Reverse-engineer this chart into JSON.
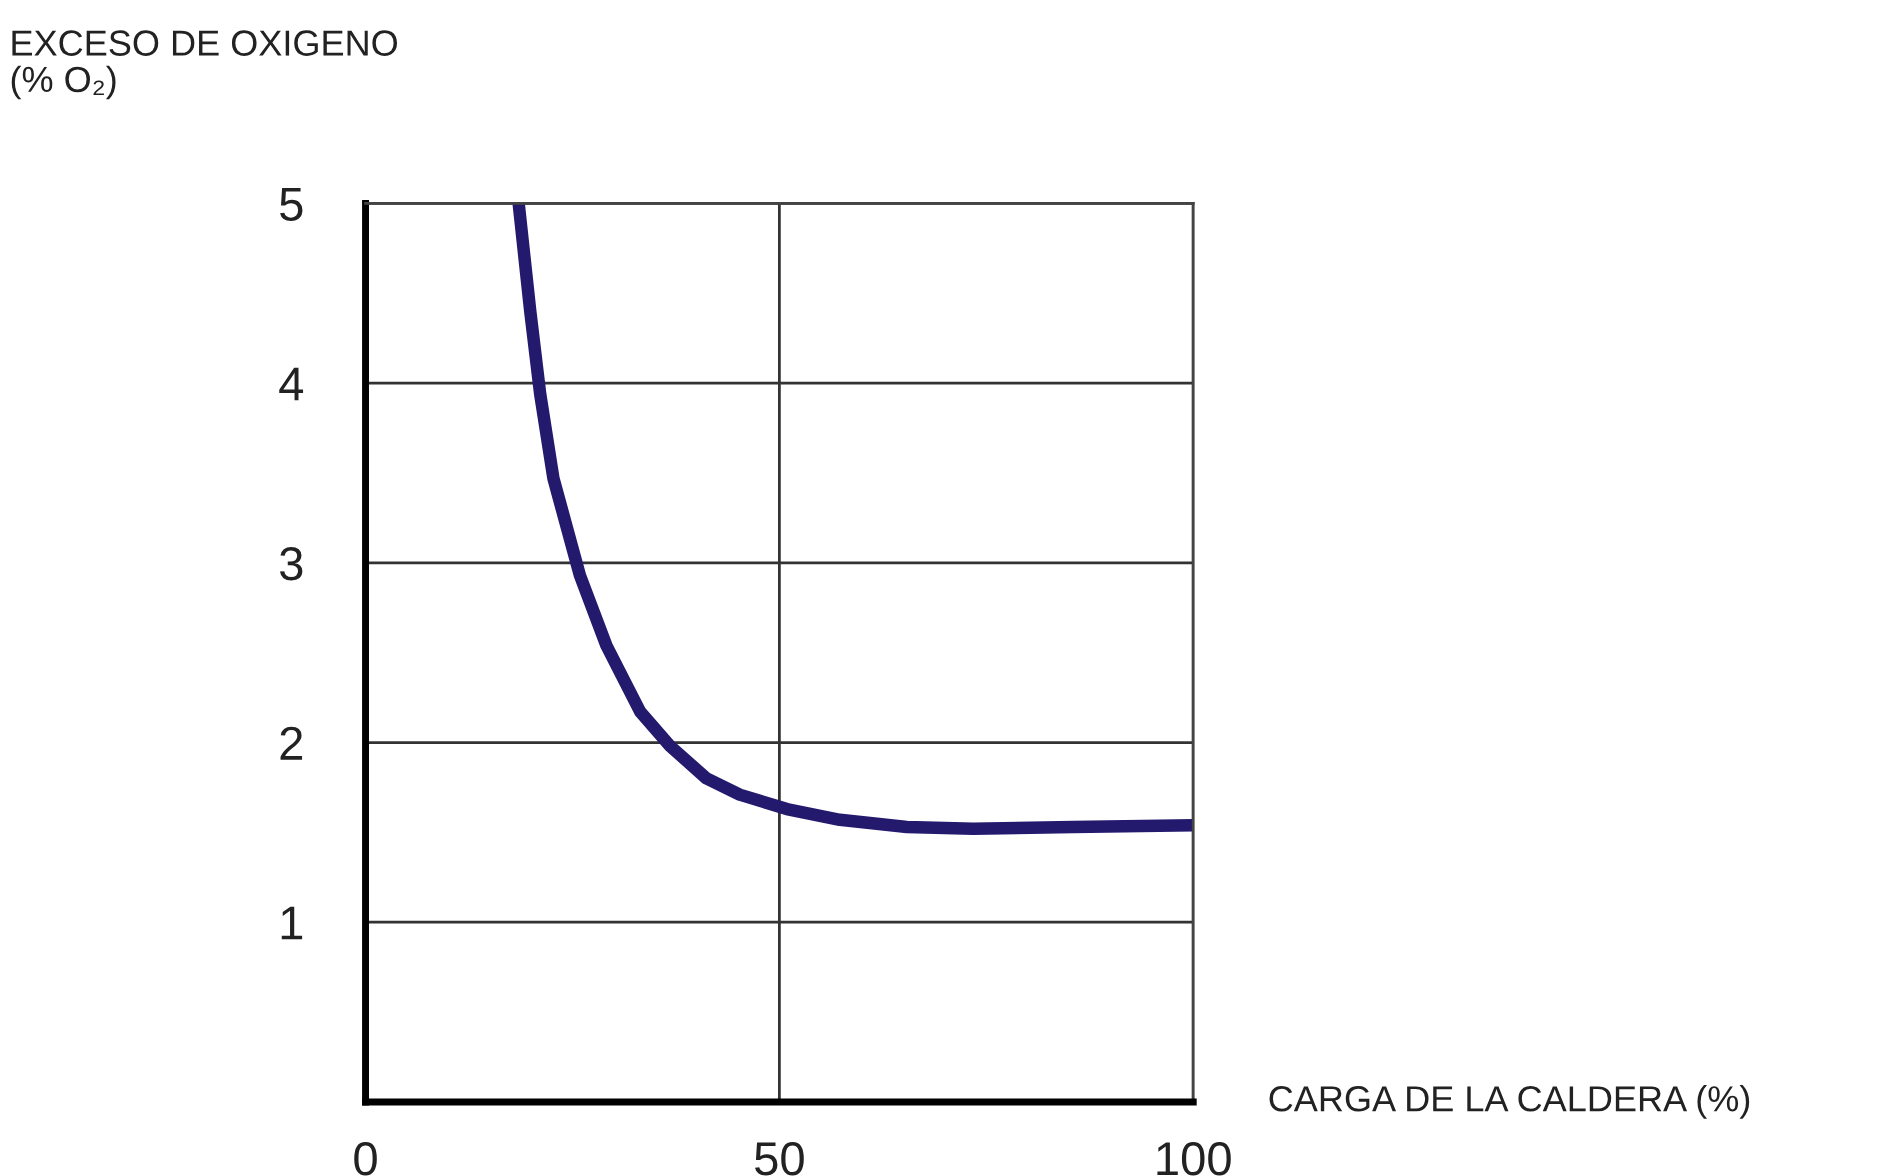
{
  "chart_data": {
    "type": "line",
    "xlabel": "CARGA DE LA CALDERA (%)",
    "ylabel": "EXCESO DE OXIGENO\n(% O₂)",
    "x": [
      18.5,
      19.9,
      21.1,
      22.7,
      25.9,
      29.1,
      33.2,
      36.8,
      41.2,
      45.2,
      50.9,
      57.3,
      65.4,
      73.4,
      85.5,
      100
    ],
    "series": [
      {
        "color": "#231a6e",
        "values": [
          5.0,
          4.4,
          3.94,
          3.47,
          2.93,
          2.54,
          2.17,
          1.98,
          1.8,
          1.71,
          1.63,
          1.57,
          1.53,
          1.52,
          1.53,
          1.54
        ]
      }
    ],
    "xlim": [
      0,
      100
    ],
    "ylim": [
      0,
      5
    ],
    "xticks": [
      0,
      50,
      100
    ],
    "yticks": [
      1,
      2,
      3,
      4,
      5
    ],
    "grid": true,
    "marker": "none",
    "line_style": "solid",
    "legend": false
  }
}
